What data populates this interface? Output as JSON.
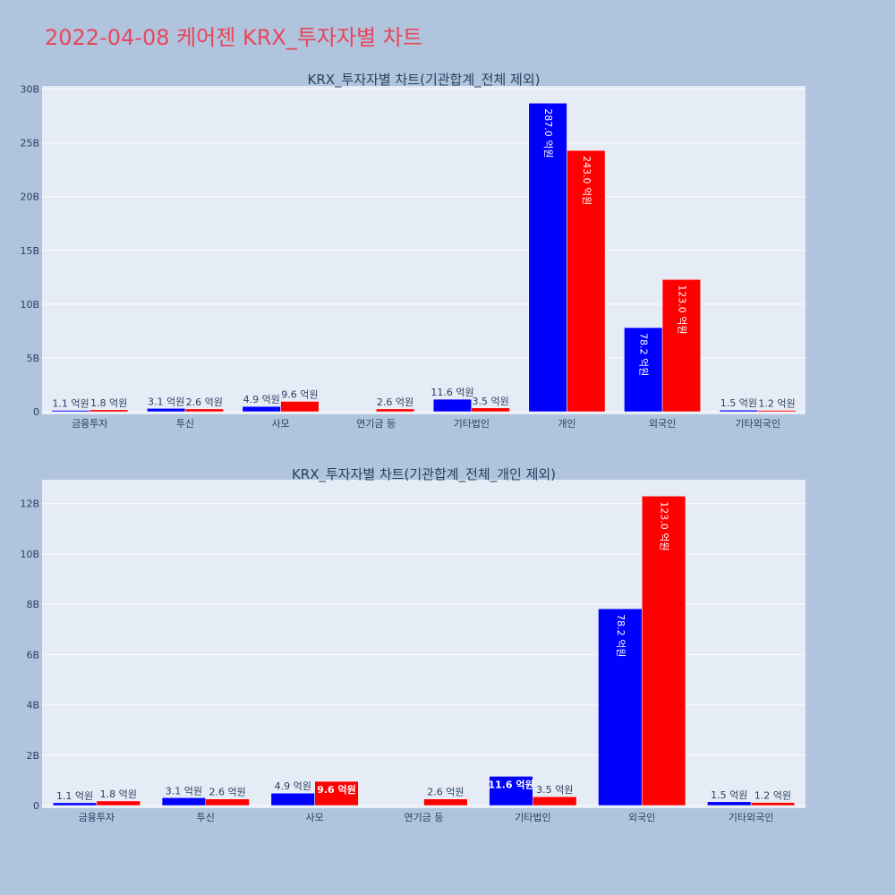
{
  "page": {
    "title": "2022-04-08 케어젠 KRX_투자자별 차트"
  },
  "colors": {
    "buy": "#0000ff",
    "sell": "#ff0000",
    "plot_bg": "#e5ecf6",
    "paper_bg": "#b0c4de",
    "title": "#e8465a"
  },
  "chart_data": [
    {
      "type": "bar",
      "title": "KRX_투자자별 차트(기관합계_전체 제외)",
      "categories": [
        "금융투자",
        "투신",
        "사모",
        "연기금 등",
        "기타법인",
        "개인",
        "외국인",
        "기타외국인"
      ],
      "series": [
        {
          "values": [
            0.11,
            0.31,
            0.49,
            0,
            1.16,
            28.7,
            7.82,
            0.15
          ],
          "labels": [
            "1.1 억원",
            "3.1 억원",
            "4.9 억원",
            "",
            "11.6 억원",
            "287.0 억원",
            "78.2 억원",
            "1.5 억원"
          ]
        },
        {
          "values": [
            0.18,
            0.26,
            0.96,
            0.26,
            0.35,
            24.3,
            12.3,
            0.12
          ],
          "labels": [
            "1.8 억원",
            "2.6 억원",
            "9.6 억원",
            "2.6 억원",
            "3.5 억원",
            "243.0 억원",
            "123.0 억원",
            "1.2 억원"
          ]
        }
      ],
      "yticks": [
        "0",
        "5B",
        "10B",
        "15B",
        "20B",
        "25B",
        "30B"
      ],
      "ytick_values": [
        0,
        5,
        10,
        15,
        20,
        25,
        30
      ],
      "ylim": [
        0,
        30.3
      ],
      "grid": true
    },
    {
      "type": "bar",
      "title": "KRX_투자자별 차트(기관합계_전체_개인 제외)",
      "categories": [
        "금융투자",
        "투신",
        "사모",
        "연기금 등",
        "기타법인",
        "외국인",
        "기타외국인"
      ],
      "series": [
        {
          "values": [
            0.11,
            0.31,
            0.49,
            0,
            1.16,
            7.82,
            0.15
          ],
          "labels": [
            "1.1 억원",
            "3.1 억원",
            "4.9 억원",
            "",
            "11.6 억원",
            "78.2 억원",
            "1.5 억원"
          ]
        },
        {
          "values": [
            0.18,
            0.26,
            0.96,
            0.26,
            0.35,
            12.3,
            0.12
          ],
          "labels": [
            "1.8 억원",
            "2.6 억원",
            "9.6 억원",
            "2.6 억원",
            "3.5 억원",
            "123.0 억원",
            "1.2 억원"
          ]
        }
      ],
      "yticks": [
        "0",
        "2B",
        "4B",
        "6B",
        "8B",
        "10B",
        "12B"
      ],
      "ytick_values": [
        0,
        2,
        4,
        6,
        8,
        10,
        12
      ],
      "ylim": [
        0,
        12.95
      ],
      "grid": true
    }
  ]
}
